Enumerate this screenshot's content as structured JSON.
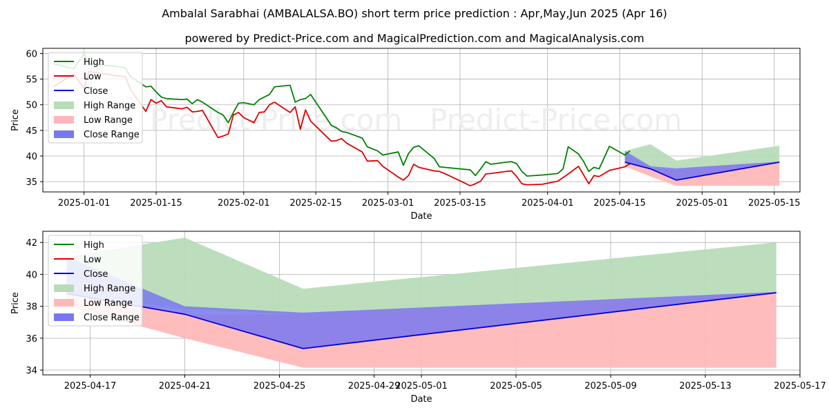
{
  "title": "Ambalal Sarabhai (AMBALALSA.BO) short term price prediction : Apr,May,Jun 2025 (Apr 16)",
  "subtitle": "powered by Predict-Price.com and MagicalPrediction.com and MagicalAnalysis.com",
  "watermark": "Predict-Price.com",
  "colors": {
    "high": "#008000",
    "low": "#dd0000",
    "close": "#0000dd",
    "high_range": "#b8dcb8",
    "low_range": "#ffb8b8",
    "close_range": "#7878f0",
    "grid": "#b0b0b0",
    "watermark": "#eeeeee"
  },
  "chart_data": [
    {
      "type": "line",
      "xlabel": "Date",
      "ylabel": "Price",
      "xlim": [
        "2024-12-24",
        "2025-05-20"
      ],
      "ylim": [
        33,
        61
      ],
      "grid": true,
      "legend_position": "top-left",
      "legend": [
        "High",
        "Low",
        "Close",
        "High Range",
        "Low Range",
        "Close Range"
      ],
      "x_ticks": [
        "2025-01-01",
        "2025-01-15",
        "2025-02-01",
        "2025-02-15",
        "2025-03-01",
        "2025-03-15",
        "2025-04-01",
        "2025-04-15",
        "2025-05-01",
        "2025-05-15"
      ],
      "y_ticks": [
        35,
        40,
        45,
        50,
        55,
        60
      ],
      "series": [
        {
          "name": "High",
          "points": [
            [
              "2024-12-26",
              58.0
            ],
            [
              "2024-12-30",
              57.0
            ],
            [
              "2025-01-01",
              60.0
            ],
            [
              "2025-01-02",
              58.0
            ],
            [
              "2025-01-07",
              57.5
            ],
            [
              "2025-01-08",
              57.4
            ],
            [
              "2025-01-09",
              57.2
            ],
            [
              "2025-01-10",
              55.5
            ],
            [
              "2025-01-13",
              53.5
            ],
            [
              "2025-01-14",
              53.6
            ],
            [
              "2025-01-15",
              52.5
            ],
            [
              "2025-01-16",
              51.5
            ],
            [
              "2025-01-17",
              51.2
            ],
            [
              "2025-01-20",
              51.0
            ],
            [
              "2025-01-21",
              51.1
            ],
            [
              "2025-01-22",
              50.2
            ],
            [
              "2025-01-23",
              51.0
            ],
            [
              "2025-01-24",
              50.5
            ],
            [
              "2025-01-27",
              48.5
            ],
            [
              "2025-01-28",
              48.0
            ],
            [
              "2025-01-29",
              46.5
            ],
            [
              "2025-01-30",
              48.5
            ],
            [
              "2025-01-31",
              50.3
            ],
            [
              "2025-02-01",
              50.4
            ],
            [
              "2025-02-03",
              50.0
            ],
            [
              "2025-02-04",
              51.0
            ],
            [
              "2025-02-05",
              51.5
            ],
            [
              "2025-02-06",
              52.0
            ],
            [
              "2025-02-07",
              53.5
            ],
            [
              "2025-02-10",
              53.8
            ],
            [
              "2025-02-11",
              50.5
            ],
            [
              "2025-02-12",
              51.0
            ],
            [
              "2025-02-13",
              51.2
            ],
            [
              "2025-02-14",
              52.0
            ],
            [
              "2025-02-18",
              46.0
            ],
            [
              "2025-02-19",
              45.5
            ],
            [
              "2025-02-20",
              44.8
            ],
            [
              "2025-02-21",
              44.6
            ],
            [
              "2025-02-24",
              43.5
            ],
            [
              "2025-02-25",
              41.8
            ],
            [
              "2025-02-27",
              41.0
            ],
            [
              "2025-02-28",
              40.2
            ],
            [
              "2025-03-03",
              40.8
            ],
            [
              "2025-03-04",
              38.2
            ],
            [
              "2025-03-05",
              40.5
            ],
            [
              "2025-03-06",
              41.7
            ],
            [
              "2025-03-07",
              42.0
            ],
            [
              "2025-03-10",
              39.5
            ],
            [
              "2025-03-11",
              37.9
            ],
            [
              "2025-03-12",
              37.8
            ],
            [
              "2025-03-17",
              37.3
            ],
            [
              "2025-03-18",
              36.2
            ],
            [
              "2025-03-19",
              37.5
            ],
            [
              "2025-03-20",
              38.9
            ],
            [
              "2025-03-21",
              38.4
            ],
            [
              "2025-03-24",
              38.8
            ],
            [
              "2025-03-25",
              38.9
            ],
            [
              "2025-03-26",
              38.5
            ],
            [
              "2025-03-27",
              37.0
            ],
            [
              "2025-03-28",
              36.1
            ],
            [
              "2025-03-31",
              36.3
            ],
            [
              "2025-04-03",
              36.6
            ],
            [
              "2025-04-04",
              37.5
            ],
            [
              "2025-04-05",
              41.8
            ],
            [
              "2025-04-07",
              40.4
            ],
            [
              "2025-04-08",
              38.9
            ],
            [
              "2025-04-09",
              37.0
            ],
            [
              "2025-04-10",
              37.8
            ],
            [
              "2025-04-11",
              37.5
            ],
            [
              "2025-04-13",
              41.9
            ],
            [
              "2025-04-16",
              40.2
            ],
            [
              "2025-04-17",
              41.0
            ]
          ]
        },
        {
          "name": "Low",
          "points": [
            [
              "2024-12-26",
              53.5
            ],
            [
              "2024-12-30",
              56.0
            ],
            [
              "2025-01-01",
              53.2
            ],
            [
              "2025-01-02",
              56.5
            ],
            [
              "2025-01-07",
              55.7
            ],
            [
              "2025-01-08",
              55.6
            ],
            [
              "2025-01-09",
              55.5
            ],
            [
              "2025-01-10",
              53.0
            ],
            [
              "2025-01-13",
              48.7
            ],
            [
              "2025-01-14",
              51.0
            ],
            [
              "2025-01-15",
              50.3
            ],
            [
              "2025-01-16",
              50.8
            ],
            [
              "2025-01-17",
              49.6
            ],
            [
              "2025-01-20",
              49.2
            ],
            [
              "2025-01-21",
              49.5
            ],
            [
              "2025-01-22",
              48.6
            ],
            [
              "2025-01-23",
              48.7
            ],
            [
              "2025-01-24",
              48.9
            ],
            [
              "2025-01-27",
              43.6
            ],
            [
              "2025-01-28",
              43.9
            ],
            [
              "2025-01-29",
              44.3
            ],
            [
              "2025-01-30",
              48.0
            ],
            [
              "2025-01-31",
              48.5
            ],
            [
              "2025-02-01",
              47.5
            ],
            [
              "2025-02-03",
              46.5
            ],
            [
              "2025-02-04",
              48.5
            ],
            [
              "2025-02-05",
              48.6
            ],
            [
              "2025-02-06",
              50.0
            ],
            [
              "2025-02-07",
              50.5
            ],
            [
              "2025-02-10",
              48.5
            ],
            [
              "2025-02-11",
              49.6
            ],
            [
              "2025-02-12",
              45.2
            ],
            [
              "2025-02-13",
              49.0
            ],
            [
              "2025-02-14",
              46.8
            ],
            [
              "2025-02-18",
              42.9
            ],
            [
              "2025-02-19",
              43.0
            ],
            [
              "2025-02-20",
              43.4
            ],
            [
              "2025-02-21",
              42.5
            ],
            [
              "2025-02-24",
              40.8
            ],
            [
              "2025-02-25",
              39.0
            ],
            [
              "2025-02-27",
              39.1
            ],
            [
              "2025-02-28",
              38.0
            ],
            [
              "2025-03-03",
              35.9
            ],
            [
              "2025-03-04",
              35.3
            ],
            [
              "2025-03-05",
              36.2
            ],
            [
              "2025-03-06",
              38.4
            ],
            [
              "2025-03-07",
              37.8
            ],
            [
              "2025-03-10",
              37.1
            ],
            [
              "2025-03-11",
              37.0
            ],
            [
              "2025-03-12",
              36.6
            ],
            [
              "2025-03-17",
              34.2
            ],
            [
              "2025-03-18",
              34.6
            ],
            [
              "2025-03-19",
              35.1
            ],
            [
              "2025-03-20",
              36.5
            ],
            [
              "2025-03-21",
              36.6
            ],
            [
              "2025-03-24",
              37.0
            ],
            [
              "2025-03-25",
              37.1
            ],
            [
              "2025-03-26",
              36.0
            ],
            [
              "2025-03-27",
              34.6
            ],
            [
              "2025-03-28",
              34.4
            ],
            [
              "2025-03-31",
              34.5
            ],
            [
              "2025-04-03",
              35.1
            ],
            [
              "2025-04-04",
              35.8
            ],
            [
              "2025-04-05",
              36.5
            ],
            [
              "2025-04-07",
              38.0
            ],
            [
              "2025-04-08",
              36.3
            ],
            [
              "2025-04-09",
              34.6
            ],
            [
              "2025-04-10",
              36.2
            ],
            [
              "2025-04-11",
              36.0
            ],
            [
              "2025-04-13",
              37.2
            ],
            [
              "2025-04-16",
              37.9
            ],
            [
              "2025-04-17",
              38.5
            ]
          ]
        },
        {
          "name": "Close",
          "points": [
            [
              "2025-04-16",
              38.8
            ],
            [
              "2025-04-21",
              37.5
            ],
            [
              "2025-04-26",
              35.3
            ],
            [
              "2025-05-16",
              38.8
            ]
          ]
        }
      ],
      "ranges": [
        {
          "name": "High Range",
          "upper": [
            [
              "2025-04-16",
              41.0
            ],
            [
              "2025-04-21",
              42.3
            ],
            [
              "2025-04-26",
              39.1
            ],
            [
              "2025-05-16",
              42.0
            ]
          ],
          "lower": [
            [
              "2025-04-16",
              38.9
            ],
            [
              "2025-04-21",
              37.8
            ],
            [
              "2025-04-26",
              37.5
            ],
            [
              "2025-05-16",
              38.8
            ]
          ]
        },
        {
          "name": "Low Range",
          "upper": [
            [
              "2025-04-16",
              38.8
            ],
            [
              "2025-04-21",
              37.5
            ],
            [
              "2025-04-26",
              37.5
            ],
            [
              "2025-05-16",
              38.8
            ]
          ],
          "lower": [
            [
              "2025-04-16",
              38.0
            ],
            [
              "2025-04-21",
              36.0
            ],
            [
              "2025-04-26",
              34.2
            ],
            [
              "2025-05-16",
              34.2
            ]
          ]
        },
        {
          "name": "Close Range",
          "upper": [
            [
              "2025-04-16",
              41.0
            ],
            [
              "2025-04-21",
              38.0
            ],
            [
              "2025-04-26",
              37.6
            ],
            [
              "2025-05-16",
              38.9
            ]
          ],
          "lower": [
            [
              "2025-04-16",
              38.8
            ],
            [
              "2025-04-21",
              37.5
            ],
            [
              "2025-04-26",
              35.3
            ],
            [
              "2025-05-16",
              38.8
            ]
          ]
        }
      ]
    },
    {
      "type": "line",
      "xlabel": "Date",
      "ylabel": "Price",
      "xlim": [
        "2025-04-15",
        "2025-05-17"
      ],
      "ylim": [
        33.7,
        42.7
      ],
      "grid": true,
      "legend_position": "top-left",
      "legend": [
        "High",
        "Low",
        "Close",
        "High Range",
        "Low Range",
        "Close Range"
      ],
      "x_ticks": [
        "2025-04-17",
        "2025-04-21",
        "2025-04-25",
        "2025-04-29",
        "2025-05-01",
        "2025-05-05",
        "2025-05-09",
        "2025-05-13",
        "2025-05-17"
      ],
      "y_ticks": [
        34,
        36,
        38,
        40,
        42
      ],
      "series": [
        {
          "name": "Close",
          "points": [
            [
              "2025-04-16",
              38.8
            ],
            [
              "2025-04-21",
              37.5
            ],
            [
              "2025-04-26",
              35.35
            ],
            [
              "2025-05-16",
              38.85
            ]
          ]
        }
      ],
      "ranges": [
        {
          "name": "High Range",
          "upper": [
            [
              "2025-04-16",
              41.1
            ],
            [
              "2025-04-21",
              42.3
            ],
            [
              "2025-04-26",
              39.1
            ],
            [
              "2025-05-16",
              42.0
            ]
          ],
          "lower": [
            [
              "2025-04-16",
              38.9
            ],
            [
              "2025-04-21",
              37.8
            ],
            [
              "2025-04-26",
              37.5
            ],
            [
              "2025-05-16",
              38.8
            ]
          ]
        },
        {
          "name": "Low Range",
          "upper": [
            [
              "2025-04-16",
              38.8
            ],
            [
              "2025-04-21",
              37.5
            ],
            [
              "2025-04-26",
              37.5
            ],
            [
              "2025-05-16",
              38.8
            ]
          ],
          "lower": [
            [
              "2025-04-16",
              38.0
            ],
            [
              "2025-04-21",
              36.0
            ],
            [
              "2025-04-26",
              34.15
            ],
            [
              "2025-05-16",
              34.15
            ]
          ]
        },
        {
          "name": "Close Range",
          "upper": [
            [
              "2025-04-16",
              41.1
            ],
            [
              "2025-04-21",
              38.0
            ],
            [
              "2025-04-26",
              37.6
            ],
            [
              "2025-05-16",
              38.9
            ]
          ],
          "lower": [
            [
              "2025-04-16",
              38.8
            ],
            [
              "2025-04-21",
              37.5
            ],
            [
              "2025-04-26",
              35.35
            ],
            [
              "2025-05-16",
              38.85
            ]
          ]
        }
      ]
    }
  ]
}
